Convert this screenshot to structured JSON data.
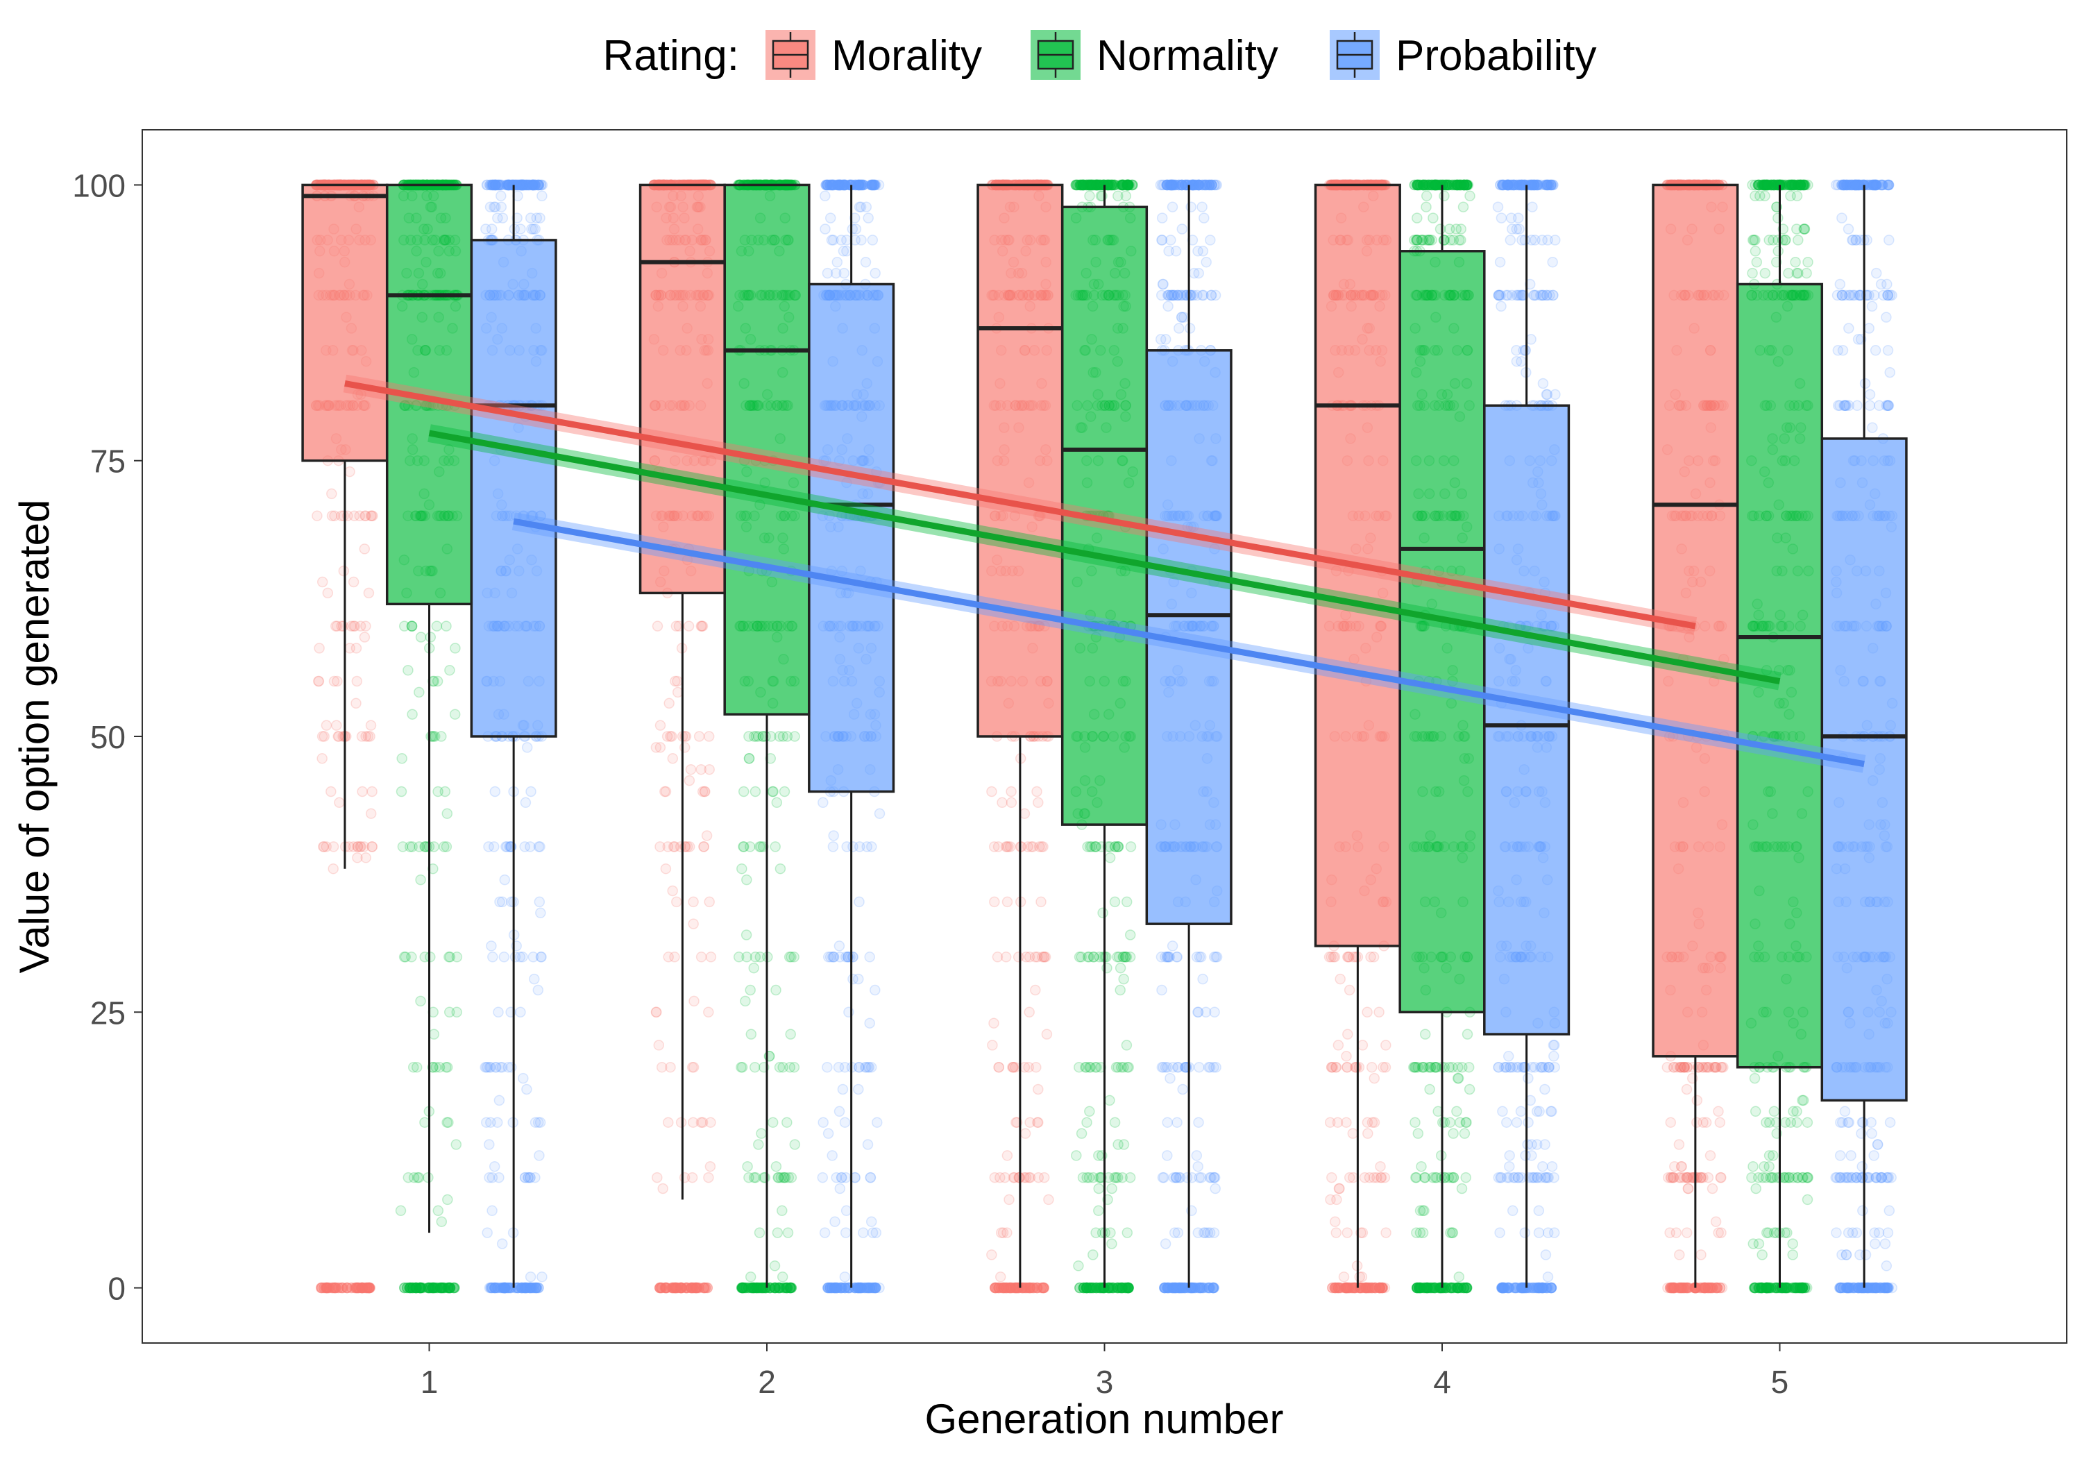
{
  "chart_data": {
    "type": "boxplot",
    "legend": {
      "title": "Rating:",
      "position": "top",
      "entries": [
        "Morality",
        "Normality",
        "Probability"
      ]
    },
    "xlabel": "Generation number",
    "ylabel": "Value of option generated",
    "categories": [
      "1",
      "2",
      "3",
      "4",
      "5"
    ],
    "xlim": [
      0.15,
      5.85
    ],
    "ylim": [
      -5,
      105
    ],
    "yticks": [
      0,
      25,
      50,
      75,
      100
    ],
    "grid": false,
    "series": [
      {
        "name": "Morality",
        "color": "#F8766D",
        "boxes": [
          {
            "generation": 1,
            "min": 38,
            "q1": 75,
            "median": 99,
            "q3": 100,
            "max": 100
          },
          {
            "generation": 2,
            "min": 8,
            "q1": 63,
            "median": 93,
            "q3": 100,
            "max": 100
          },
          {
            "generation": 3,
            "min": 0,
            "q1": 50,
            "median": 87,
            "q3": 100,
            "max": 100
          },
          {
            "generation": 4,
            "min": 0,
            "q1": 31,
            "median": 80,
            "q3": 100,
            "max": 100
          },
          {
            "generation": 5,
            "min": 0,
            "q1": 21,
            "median": 71,
            "q3": 100,
            "max": 100
          }
        ],
        "trend": {
          "x": [
            1,
            5
          ],
          "y": [
            82,
            60
          ]
        }
      },
      {
        "name": "Normality",
        "color": "#00BA38",
        "boxes": [
          {
            "generation": 1,
            "min": 5,
            "q1": 62,
            "median": 90,
            "q3": 100,
            "max": 100
          },
          {
            "generation": 2,
            "min": 0,
            "q1": 52,
            "median": 85,
            "q3": 100,
            "max": 100
          },
          {
            "generation": 3,
            "min": 0,
            "q1": 42,
            "median": 76,
            "q3": 98,
            "max": 100
          },
          {
            "generation": 4,
            "min": 0,
            "q1": 25,
            "median": 67,
            "q3": 94,
            "max": 100
          },
          {
            "generation": 5,
            "min": 0,
            "q1": 20,
            "median": 59,
            "q3": 91,
            "max": 100
          }
        ],
        "trend": {
          "x": [
            1,
            5
          ],
          "y": [
            77.5,
            55
          ]
        }
      },
      {
        "name": "Probability",
        "color": "#619CFF",
        "boxes": [
          {
            "generation": 1,
            "min": 0,
            "q1": 50,
            "median": 80,
            "q3": 95,
            "max": 100
          },
          {
            "generation": 2,
            "min": 0,
            "q1": 45,
            "median": 71,
            "q3": 91,
            "max": 100
          },
          {
            "generation": 3,
            "min": 0,
            "q1": 33,
            "median": 61,
            "q3": 85,
            "max": 100
          },
          {
            "generation": 4,
            "min": 0,
            "q1": 23,
            "median": 51,
            "q3": 80,
            "max": 100
          },
          {
            "generation": 5,
            "min": 0,
            "q1": 17,
            "median": 50,
            "q3": 77,
            "max": 100
          }
        ],
        "trend": {
          "x": [
            1,
            5
          ],
          "y": [
            69.5,
            47.5
          ]
        }
      }
    ]
  }
}
